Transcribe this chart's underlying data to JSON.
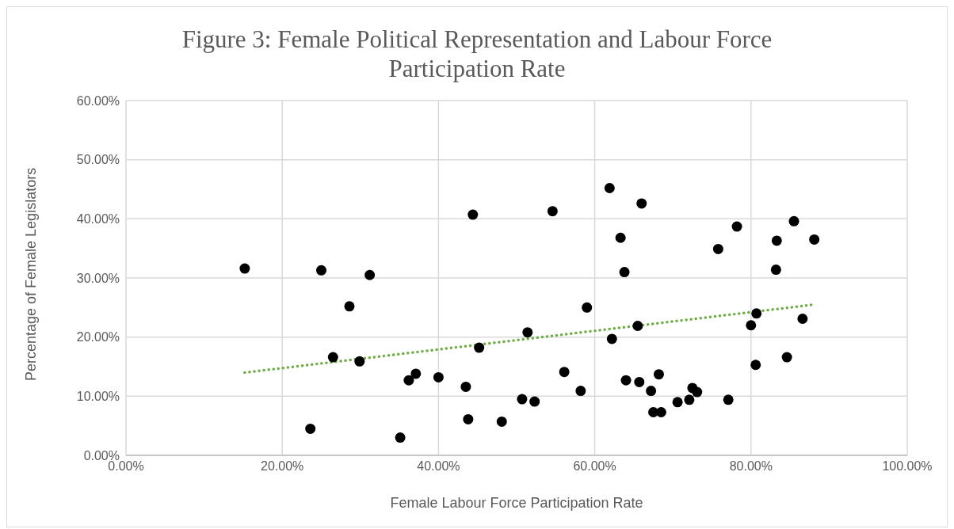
{
  "chart_data": {
    "type": "scatter",
    "title": "Figure 3: Female Political Representation and Labour Force Participation Rate",
    "xlabel": "Female Labour Force Participation Rate",
    "ylabel": "Percentage of Female Legislators",
    "xlim": [
      0,
      100
    ],
    "ylim": [
      0,
      60
    ],
    "xticks": [
      {
        "value": 0,
        "label": "0.00%"
      },
      {
        "value": 20,
        "label": "20.00%"
      },
      {
        "value": 40,
        "label": "40.00%"
      },
      {
        "value": 60,
        "label": "60.00%"
      },
      {
        "value": 80,
        "label": "80.00%"
      },
      {
        "value": 100,
        "label": "100.00%"
      }
    ],
    "yticks": [
      {
        "value": 0,
        "label": "0.00%"
      },
      {
        "value": 10,
        "label": "10.00%"
      },
      {
        "value": 20,
        "label": "20.00%"
      },
      {
        "value": 30,
        "label": "30.00%"
      },
      {
        "value": 40,
        "label": "40.00%"
      },
      {
        "value": 50,
        "label": "50.00%"
      },
      {
        "value": 60,
        "label": "60.00%"
      }
    ],
    "grid": true,
    "series": [
      {
        "marker": "circle",
        "color": "#000000",
        "x": [
          15.2,
          25.0,
          31.2,
          28.6,
          26.5,
          29.9,
          36.2,
          37.1,
          40.0,
          43.5,
          44.4,
          45.2,
          43.8,
          48.1,
          23.6,
          35.1,
          50.7,
          52.3,
          51.4,
          54.6,
          56.1,
          58.2,
          59.0,
          61.9,
          62.2,
          63.3,
          63.8,
          64.0,
          66.0,
          65.5,
          65.7,
          67.2,
          68.2,
          67.5,
          68.5,
          70.6,
          72.1,
          72.5,
          73.1,
          75.8,
          77.1,
          78.2,
          80.0,
          80.7,
          80.6,
          83.3,
          83.2,
          85.5,
          84.6,
          86.6,
          88.1
        ],
        "values": [
          31.6,
          31.3,
          30.5,
          25.2,
          16.6,
          15.9,
          12.7,
          13.8,
          13.2,
          11.6,
          40.7,
          18.2,
          6.1,
          5.7,
          4.5,
          3.0,
          9.5,
          9.1,
          20.8,
          41.3,
          14.1,
          10.9,
          25.0,
          45.2,
          19.7,
          36.8,
          31.0,
          12.7,
          42.6,
          21.9,
          12.4,
          10.9,
          13.7,
          7.3,
          7.3,
          9.0,
          9.4,
          11.4,
          10.7,
          34.9,
          9.4,
          38.7,
          22.0,
          24.0,
          15.3,
          36.3,
          31.4,
          39.6,
          16.6,
          23.1,
          36.5
        ]
      },
      {
        "type": "line",
        "color": "#70ad47",
        "line_style": "dotted",
        "x": [
          15.2,
          88.1
        ],
        "values": [
          14.0,
          25.5
        ]
      }
    ]
  }
}
